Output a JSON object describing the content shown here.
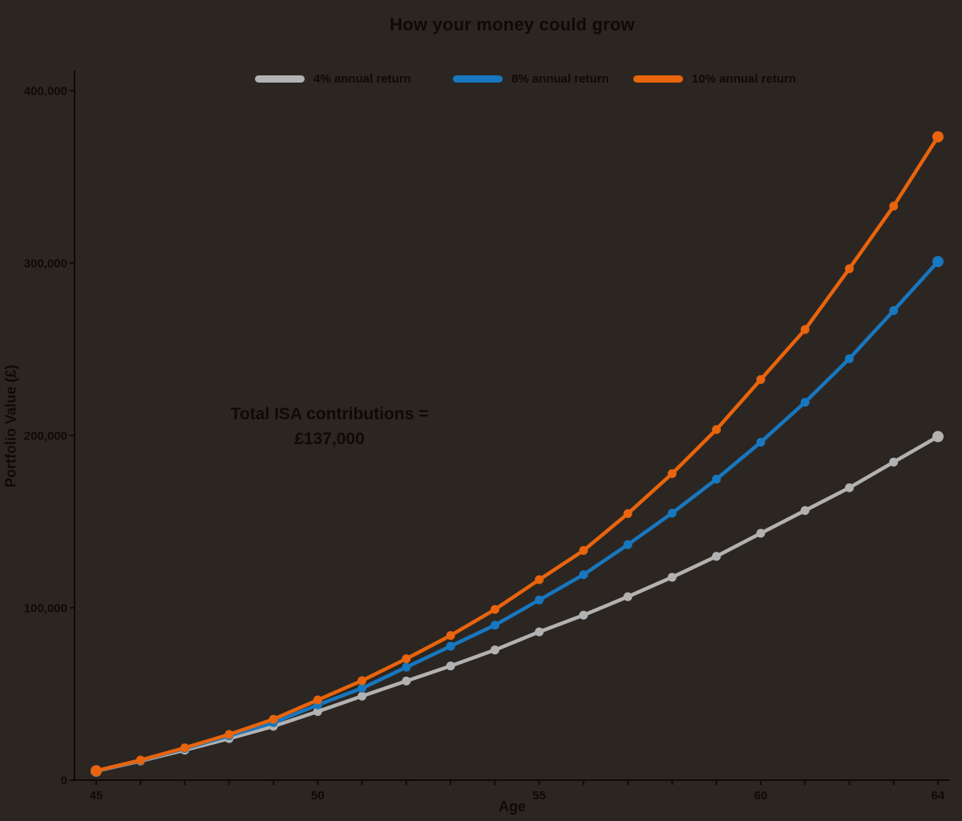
{
  "colors": {
    "background": "#2c2622",
    "text": "#0f0a07",
    "axis": "#0f0a07"
  },
  "chart_data": {
    "type": "line",
    "title": "How your money could grow",
    "xlabel": "Age",
    "ylabel": "Portfolio Value (£)",
    "x": [
      45,
      46,
      47,
      48,
      49,
      50,
      51,
      52,
      53,
      54,
      55,
      56,
      57,
      58,
      59,
      60,
      61,
      62,
      63,
      64
    ],
    "x_tick_labels": [
      "45",
      "50",
      "55",
      "60",
      "64"
    ],
    "x_tick_label_values": [
      45,
      50,
      55,
      60,
      64
    ],
    "y_ticks": [
      0,
      100000,
      200000,
      300000,
      400000
    ],
    "y_tick_labels": [
      "0",
      "100,000",
      "200,000",
      "300,000",
      "400,000"
    ],
    "xlim": [
      45,
      64
    ],
    "ylim": [
      0,
      411000
    ],
    "grid": false,
    "legend_position": "top",
    "annotation": {
      "lines": [
        "Total ISA contributions =",
        "£137,000"
      ]
    },
    "series": [
      {
        "name": "4% annual return",
        "color": "#b2b2b2",
        "values": [
          5200,
          11100,
          17400,
          24100,
          31200,
          39800,
          48700,
          57500,
          66200,
          75500,
          86000,
          95700,
          106400,
          117700,
          129800,
          143200,
          156400,
          169600,
          184500,
          199300
        ]
      },
      {
        "name": "8% annual return",
        "color": "#1777bf",
        "values": [
          5300,
          11400,
          18300,
          25700,
          33300,
          43600,
          53300,
          65500,
          77700,
          89900,
          104500,
          119200,
          136600,
          154900,
          174600,
          196000,
          219200,
          244500,
          272400,
          300800
        ]
      },
      {
        "name": "10% annual return",
        "color": "#e8640d",
        "values": [
          5400,
          11600,
          18700,
          26500,
          35300,
          46500,
          57700,
          70400,
          83900,
          99000,
          116300,
          133200,
          154600,
          177800,
          203400,
          232400,
          261400,
          296700,
          333000,
          373200
        ]
      }
    ]
  }
}
